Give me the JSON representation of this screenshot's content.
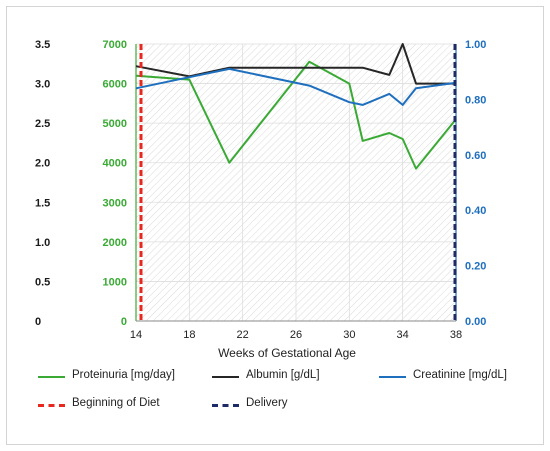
{
  "chart_data": {
    "type": "line",
    "xlabel": "Weeks of Gestational Age",
    "x_ticks": [
      14,
      18,
      22,
      26,
      30,
      34,
      38
    ],
    "xlim": [
      14,
      38
    ],
    "axes": {
      "left_outer": {
        "ticks": [
          "0",
          "0.5",
          "1.0",
          "1.5",
          "2.0",
          "2.5",
          "3.0",
          "3.5"
        ],
        "range": [
          0,
          3.5
        ],
        "color": "#1a1a1a"
      },
      "left_inner": {
        "ticks": [
          "0",
          "1000",
          "2000",
          "3000",
          "4000",
          "5000",
          "6000",
          "7000"
        ],
        "range": [
          0,
          7000
        ],
        "color": "#3aaa35"
      },
      "right": {
        "ticks": [
          "0.00",
          "0.20",
          "0.40",
          "0.60",
          "0.80",
          "1.00"
        ],
        "range": [
          0,
          1.0
        ],
        "color": "#1f6fbf"
      }
    },
    "series": [
      {
        "name": "Proteinuria [mg/day]",
        "axis": "left_inner",
        "color": "#3aaa35",
        "x": [
          14,
          18,
          21,
          27,
          30,
          31,
          33,
          34,
          35,
          38
        ],
        "y": [
          6200,
          6100,
          4000,
          6550,
          6000,
          4550,
          4750,
          4600,
          3850,
          5100
        ]
      },
      {
        "name": "Albumin [g/dL]",
        "axis": "left_outer",
        "color": "#262626",
        "x": [
          14,
          18,
          21,
          26,
          30,
          31,
          33,
          34,
          35,
          38
        ],
        "y": [
          3.22,
          3.09,
          3.2,
          3.2,
          3.2,
          3.2,
          3.11,
          3.5,
          3.0,
          3.0
        ]
      },
      {
        "name": "Creatinine [mg/dL]",
        "axis": "right",
        "color": "#1f6fbf",
        "x": [
          14,
          18,
          21,
          27,
          30,
          31,
          33,
          34,
          35,
          38
        ],
        "y": [
          0.84,
          0.88,
          0.91,
          0.85,
          0.79,
          0.78,
          0.82,
          0.78,
          0.84,
          0.86
        ]
      }
    ],
    "markers": [
      {
        "name": "Beginning of Diet",
        "x": 14,
        "color": "#e8281e",
        "style": "dashed"
      },
      {
        "name": "Delivery",
        "x": 38,
        "color": "#1c2a66",
        "style": "dashed"
      }
    ],
    "legend": [
      {
        "label": "Proteinuria [mg/day]",
        "color": "#3aaa35",
        "style": "solid"
      },
      {
        "label": "Albumin [g/dL]",
        "color": "#262626",
        "style": "solid"
      },
      {
        "label": "Creatinine [mg/dL]",
        "color": "#1f6fbf",
        "style": "solid"
      },
      {
        "label": "Beginning of Diet",
        "color": "#e8281e",
        "style": "dashed"
      },
      {
        "label": "Delivery",
        "color": "#1c2a66",
        "style": "dashed"
      }
    ],
    "legend_position": "bottom",
    "grid": true,
    "plot_background": "hatched"
  }
}
